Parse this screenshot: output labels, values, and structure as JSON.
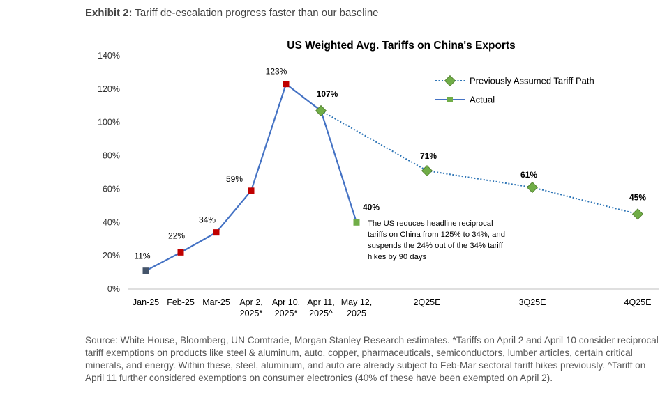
{
  "exhibit": {
    "label": "Exhibit 2:",
    "text": "Tariff de-escalation progress faster than our baseline"
  },
  "chart_data": {
    "type": "line",
    "title": "US Weighted Avg. Tariffs on China's Exports",
    "categories": [
      "Jan-25",
      "Feb-25",
      "Mar-25",
      "Apr 2,\n2025*",
      "Apr 10,\n2025*",
      "Apr 11,\n2025^",
      "May 12,\n2025",
      "2Q25E",
      "3Q25E",
      "4Q25E"
    ],
    "ylim": [
      0,
      140
    ],
    "yticks": [
      0,
      20,
      40,
      60,
      80,
      100,
      120,
      140
    ],
    "series": [
      {
        "name": "Previously Assumed Tariff Path",
        "style": "dotted",
        "color": "#2e75b6",
        "marker": "diamond",
        "marker_color": "#70ad47",
        "points": [
          {
            "x": "Apr 11,\n2025^",
            "y": 107,
            "label": "107%"
          },
          {
            "x": "2Q25E",
            "y": 71,
            "label": "71%"
          },
          {
            "x": "3Q25E",
            "y": 61,
            "label": "61%"
          },
          {
            "x": "4Q25E",
            "y": 45,
            "label": "45%"
          }
        ]
      },
      {
        "name": "Actual",
        "style": "solid",
        "color": "#4472c4",
        "marker": "square",
        "marker_color": "#c00000",
        "points": [
          {
            "x": "Jan-25",
            "y": 11,
            "label": "11%",
            "marker_color": "#44546a"
          },
          {
            "x": "Feb-25",
            "y": 22,
            "label": "22%"
          },
          {
            "x": "Mar-25",
            "y": 34,
            "label": "34%"
          },
          {
            "x": "Apr 2,\n2025*",
            "y": 59,
            "label": "59%"
          },
          {
            "x": "Apr 10,\n2025*",
            "y": 123,
            "label": "123%"
          },
          {
            "x": "Apr 11,\n2025^",
            "y": 107
          },
          {
            "x": "May 12,\n2025",
            "y": 40,
            "label": "40%",
            "marker_color": "#70ad47"
          }
        ]
      }
    ],
    "legend_legend_entry_marker_colors": [
      "#70ad47",
      "#70ad47"
    ],
    "annotation": "The US reduces headline reciprocal\ntariffs on China from 125% to 34%, and\nsuspends the 24% out of the 34% tariff\nhikes by 90 days",
    "legend": "top-right",
    "grid": false
  },
  "source": "Source: White House, Bloomberg, UN Comtrade, Morgan Stanley Research estimates. *Tariffs on April 2 and April 10 consider reciprocal tariff exemptions on products like steel & aluminum, auto, copper, pharmaceuticals, semiconductors, lumber articles, certain critical minerals, and energy. Within these, steel, aluminum, and auto are already subject to Feb-Mar sectoral tariff hikes previously. ^Tariff on April 11 further considered exemptions on consumer electronics (40% of these have been exempted on April 2)."
}
